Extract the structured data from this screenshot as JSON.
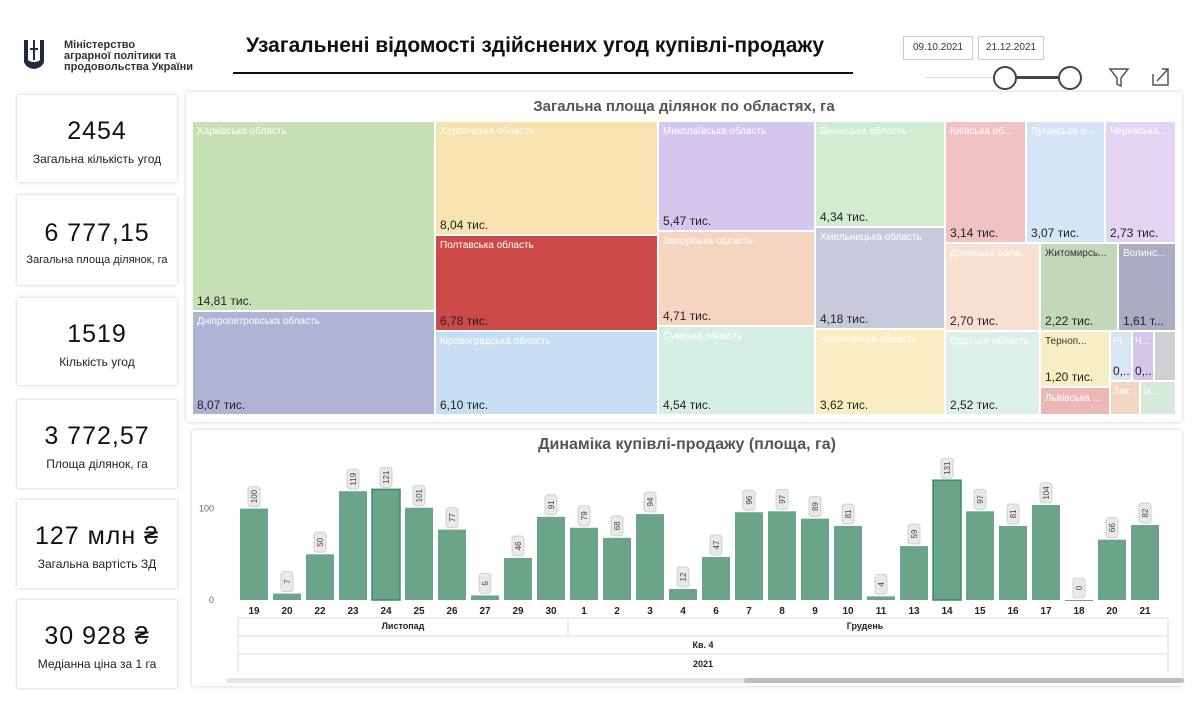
{
  "header": {
    "ministry_lines": [
      "Міністерство",
      "аграрної політики та",
      "продовольства України"
    ],
    "title": "Узагальнені відомості здійснених угод купівлі-продажу",
    "date_from": "09.10.2021",
    "date_to": "21.12.2021"
  },
  "kpis": [
    {
      "value": "2454",
      "label": "Загальна кількість угод"
    },
    {
      "value": "6 777,15",
      "label": "Загальна площа ділянок, га"
    },
    {
      "value": "1519",
      "label": "Кількість угод"
    },
    {
      "value": "3 772,57",
      "label": "Площа ділянок, га"
    },
    {
      "value": "127 млн ₴",
      "label": "Загальна вартість ЗД"
    },
    {
      "value": "30 928 ₴",
      "label": "Медіанна ціна за 1 га"
    }
  ],
  "treemap": {
    "title": "Загальна площа ділянок по областях, га",
    "tiles": [
      {
        "name": "Харківська область",
        "value": "14,81 тис.",
        "color": "#c6e2b5"
      },
      {
        "name": "Дніпропетровська область",
        "value": "8,07 тис.",
        "color": "#b0b3d3"
      },
      {
        "name": "Херсонська область",
        "value": "8,04 тис.",
        "color": "#f6e3b0"
      },
      {
        "name": "Полтавська область",
        "value": "6,78 тис.",
        "color": "#cc4a48"
      },
      {
        "name": "Кіровоградська область",
        "value": "6,10 тис.",
        "color": "#c7def2"
      },
      {
        "name": "Миколаївська область",
        "value": "5,47 тис.",
        "color": "#d4c6ec"
      },
      {
        "name": "Запорізька область",
        "value": "4,71 тис.",
        "color": "#f6d5c0"
      },
      {
        "name": "Сумська область",
        "value": "4,54 тис.",
        "color": "#d6efe4"
      },
      {
        "name": "Вінницька область",
        "value": "4,34 тис.",
        "color": "#d2ecd0"
      },
      {
        "name": "Хмельницька область",
        "value": "4,18 тис.",
        "color": "#c8cadc"
      },
      {
        "name": "Чернігівська область",
        "value": "3,62 тис.",
        "color": "#f8eec2"
      },
      {
        "name": "Київська об...",
        "value": "3,14 тис.",
        "color": "#f0c2c2"
      },
      {
        "name": "Донецька обла...",
        "value": "2,70 тис.",
        "color": "#f8e0d2"
      },
      {
        "name": "Одеська область",
        "value": "2,52 тис.",
        "color": "#dcefea"
      },
      {
        "name": "Луганська о...",
        "value": "3,07 тис.",
        "color": "#d4e6f6"
      },
      {
        "name": "Черкаська...",
        "value": "2,73 тис.",
        "color": "#e2d4f2"
      },
      {
        "name": "Житомирсь...",
        "value": "2,22 тис.",
        "color": "#c2d8b8"
      },
      {
        "name": "Волинс...",
        "value": "1,61 т...",
        "color": "#a9acc2"
      },
      {
        "name": "Терноп...",
        "value": "1,20 тис.",
        "color": "#f8eec4"
      },
      {
        "name": "Львівська ...",
        "value": "",
        "color": "#ebb8b6"
      },
      {
        "name": "Рі...",
        "value": "0,...",
        "color": "#d8e6f4"
      },
      {
        "name": "Ч...",
        "value": "0,...",
        "color": "#d4c6ec"
      },
      {
        "name": "Зак...",
        "value": "",
        "color": "#f2d6c2"
      },
      {
        "name": "Із...",
        "value": "",
        "color": "#d6eadc"
      }
    ]
  },
  "chart_data": {
    "type": "bar",
    "title": "Динаміка купівлі-продажу (площа, га)",
    "categories": [
      "19",
      "20",
      "22",
      "23",
      "24",
      "25",
      "26",
      "27",
      "29",
      "30",
      "1",
      "2",
      "3",
      "4",
      "6",
      "7",
      "8",
      "9",
      "10",
      "11",
      "13",
      "14",
      "15",
      "16",
      "17",
      "18",
      "20",
      "21"
    ],
    "values": [
      100,
      7,
      50,
      119,
      121,
      101,
      77,
      5,
      46,
      91,
      79,
      68,
      94,
      12,
      47,
      96,
      97,
      89,
      81,
      4,
      59,
      131,
      97,
      81,
      104,
      0,
      66,
      82
    ],
    "month_groups": [
      {
        "label": "Листопад",
        "count": 10
      },
      {
        "label": "Грудень",
        "count": 18
      }
    ],
    "quarter_label": "Кв. 4",
    "year_label": "2021",
    "yticks": [
      0,
      100
    ],
    "ylim": [
      0,
      140
    ],
    "bar_color": "#6aa489",
    "highlight_index": [
      4,
      21
    ]
  }
}
